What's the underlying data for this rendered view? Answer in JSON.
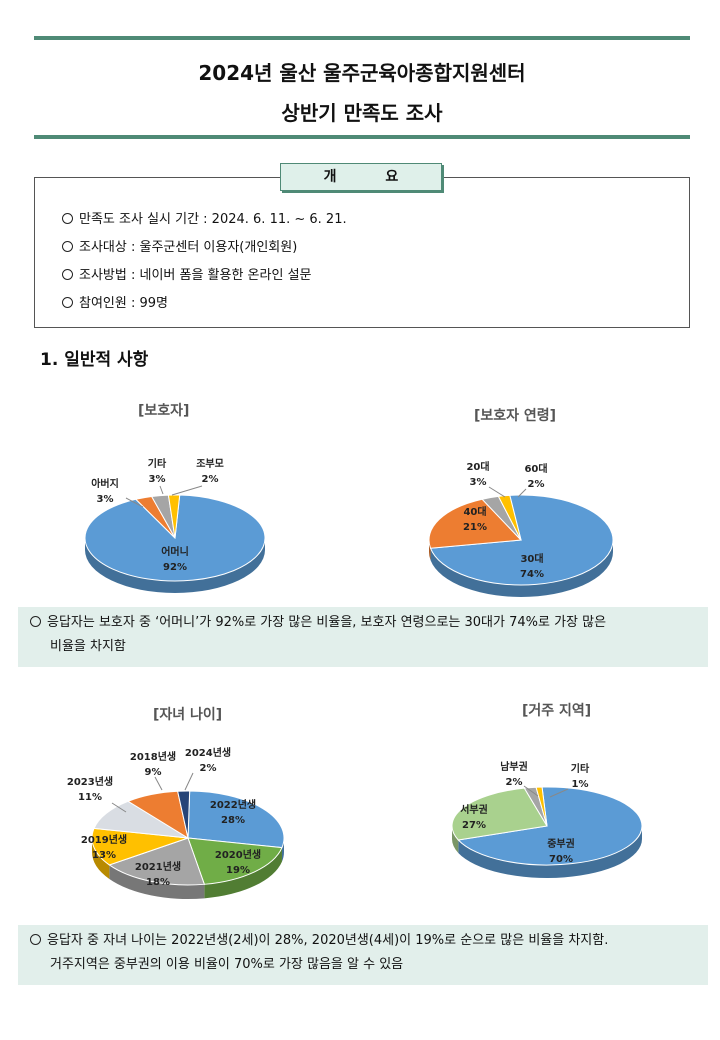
{
  "header": {
    "title_line1": "2024년 울산  울주군육아종합지원센터",
    "title_line2": "상반기 만족도 조사"
  },
  "overview": {
    "tab_label": "개 요",
    "items": [
      "만족도 조사 실시 기간 : 2024. 6. 11. ~ 6. 21.",
      "조사대상 : 울주군센터 이용자(개인회원)",
      "조사방법 : 네이버 폼을 활용한 온라인 설문",
      "참여인원 : 99명"
    ]
  },
  "section1": {
    "heading": "1. 일반적 사항"
  },
  "notes": {
    "note1_line1": "응답자는 보호자 중 ‘어머니’가 92%로 가장 많은 비율을, 보호자 연령으로는 30대가 74%로  가장 많은",
    "note1_line2": "비율을 차지함",
    "note2_line1": "응답자 중 자녀 나이는 2022년생(2세)이 28%, 2020년생(4세)이 19%로 순으로 많은 비율을 차지함.",
    "note2_line2": "거주지역은 중부권의 이용 비율이 70%로 가장 많음을 알 수 있음"
  },
  "chart_data": [
    {
      "type": "pie",
      "title": "[보호자]",
      "slices": [
        {
          "label": "어머니",
          "value": 92,
          "color": "#5b9bd5"
        },
        {
          "label": "아버지",
          "value": 3,
          "color": "#ed7d31"
        },
        {
          "label": "기타",
          "value": 3,
          "color": "#a5a5a5"
        },
        {
          "label": "조부모",
          "value": 2,
          "color": "#ffc000"
        }
      ]
    },
    {
      "type": "pie",
      "title": "[보호자 연령]",
      "slices": [
        {
          "label": "30대",
          "value": 74,
          "color": "#5b9bd5"
        },
        {
          "label": "40대",
          "value": 21,
          "color": "#ed7d31"
        },
        {
          "label": "20대",
          "value": 3,
          "color": "#a5a5a5"
        },
        {
          "label": "60대",
          "value": 2,
          "color": "#ffc000"
        }
      ]
    },
    {
      "type": "pie",
      "title": "[자녀 나이]",
      "slices": [
        {
          "label": "2022년생",
          "value": 28,
          "color": "#5b9bd5"
        },
        {
          "label": "2020년생",
          "value": 19,
          "color": "#70ad47"
        },
        {
          "label": "2021년생",
          "value": 18,
          "color": "#a5a5a5"
        },
        {
          "label": "2019년생",
          "value": 13,
          "color": "#ffc000"
        },
        {
          "label": "2023년생",
          "value": 11,
          "color": "#d9dde3"
        },
        {
          "label": "2018년생",
          "value": 9,
          "color": "#ed7d31"
        },
        {
          "label": "2024년생",
          "value": 2,
          "color": "#264478"
        }
      ]
    },
    {
      "type": "pie",
      "title": "[거주 지역]",
      "slices": [
        {
          "label": "중부권",
          "value": 70,
          "color": "#5b9bd5"
        },
        {
          "label": "서부권",
          "value": 27,
          "color": "#a9d18e"
        },
        {
          "label": "남부권",
          "value": 2,
          "color": "#a5a5a5"
        },
        {
          "label": "기타",
          "value": 1,
          "color": "#ffc000"
        }
      ]
    }
  ]
}
